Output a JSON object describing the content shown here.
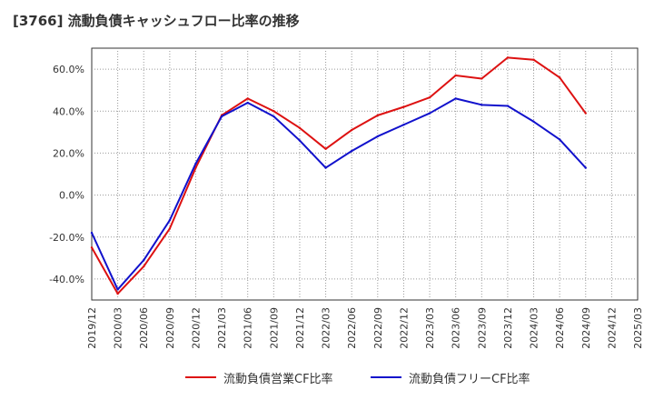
{
  "chart_data": {
    "type": "line",
    "title": "[3766]  流動負債キャッシュフロー比率の推移",
    "xlabel": "",
    "ylabel": "",
    "ylim": [
      -50,
      70
    ],
    "yticks": [
      -40,
      -20,
      0,
      20,
      40,
      60
    ],
    "ytick_labels": [
      "-40.0%",
      "-20.0%",
      "0.0%",
      "20.0%",
      "40.0%",
      "60.0%"
    ],
    "xticks": [
      "2019/12",
      "2020/03",
      "2020/06",
      "2020/09",
      "2020/12",
      "2021/03",
      "2021/06",
      "2021/09",
      "2021/12",
      "2022/03",
      "2022/06",
      "2022/09",
      "2022/12",
      "2023/03",
      "2023/06",
      "2023/09",
      "2023/12",
      "2024/03",
      "2024/06",
      "2024/09",
      "2024/12",
      "2025/03"
    ],
    "grid": true,
    "legend_position": "bottom",
    "series": [
      {
        "name": "流動負債営業CF比率",
        "color": "#dd1111",
        "x": [
          "2019/12",
          "2020/03",
          "2020/06",
          "2020/09",
          "2020/12",
          "2021/03",
          "2021/06",
          "2021/09",
          "2021/12",
          "2022/03",
          "2022/06",
          "2022/09",
          "2022/12",
          "2023/03",
          "2023/06",
          "2023/09",
          "2023/12",
          "2024/03",
          "2024/06",
          "2024/09"
        ],
        "values": [
          -25,
          -47,
          -34,
          -16,
          13,
          38,
          46,
          40,
          32,
          22,
          31,
          38,
          42,
          46.5,
          57,
          55.5,
          65.5,
          64.5,
          56,
          39
        ]
      },
      {
        "name": "流動負債フリーCF比率",
        "color": "#1111cc",
        "x": [
          "2019/12",
          "2020/03",
          "2020/06",
          "2020/09",
          "2020/12",
          "2021/03",
          "2021/06",
          "2021/09",
          "2021/12",
          "2022/03",
          "2022/06",
          "2022/09",
          "2022/12",
          "2023/03",
          "2023/06",
          "2023/09",
          "2023/12",
          "2024/03",
          "2024/06",
          "2024/09"
        ],
        "values": [
          -18,
          -45,
          -31,
          -12,
          15,
          37.5,
          44,
          37.5,
          26,
          13,
          21,
          28,
          33.5,
          39,
          46,
          43,
          42.5,
          35,
          26.5,
          13
        ]
      }
    ]
  }
}
